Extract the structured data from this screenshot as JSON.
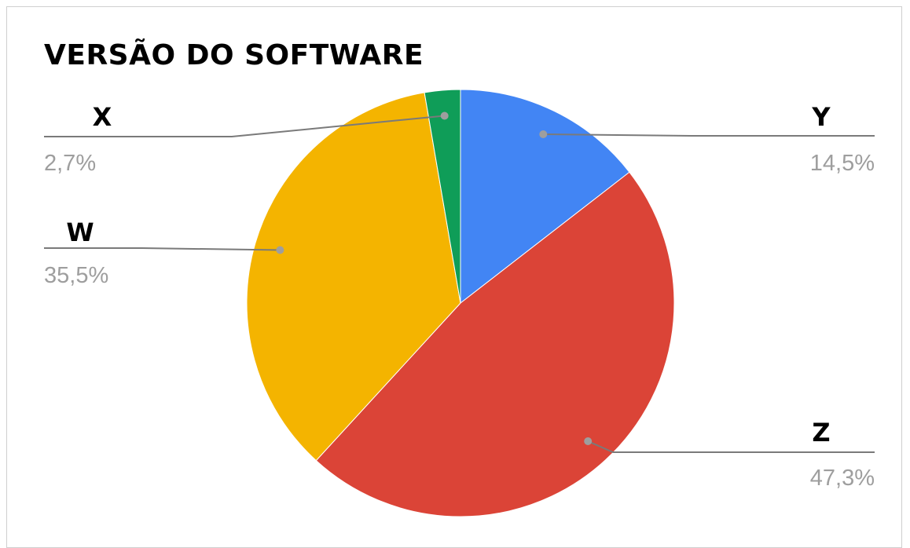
{
  "chart_data": {
    "type": "pie",
    "title": "VERSÃO DO SOFTWARE",
    "slices": [
      {
        "label": "Y",
        "value": 14.5,
        "display": "14,5%",
        "color": "#4285F4",
        "side": "right"
      },
      {
        "label": "Z",
        "value": 47.3,
        "display": "47,3%",
        "color": "#DB4437",
        "side": "right"
      },
      {
        "label": "W",
        "value": 35.5,
        "display": "35,5%",
        "color": "#F4B400",
        "side": "left"
      },
      {
        "label": "X",
        "value": 2.7,
        "display": "2,7%",
        "color": "#0F9D58",
        "side": "left"
      }
    ],
    "start": "12 o'clock, clockwise",
    "legend": "labeled leader lines"
  }
}
